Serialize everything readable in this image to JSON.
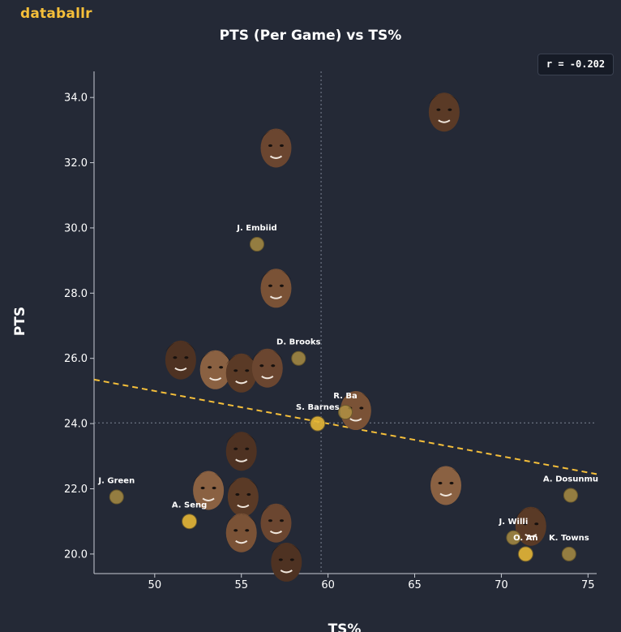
{
  "brand": "databallr",
  "header": {
    "title": "PTS (Per Game) vs TS%"
  },
  "stats_box": {
    "text": "r = -0.202"
  },
  "colors": {
    "background": "#242936",
    "accent": "#f5bf3a",
    "point": "#b99a45",
    "point_highlight": "#e6b636",
    "trend": "#f5bf3a",
    "axis": "#c8ccd4",
    "text": "#ffffff"
  },
  "chart_data": {
    "type": "scatter",
    "title": "PTS (Per Game) vs TS%",
    "xlabel": "TS%",
    "ylabel": "PTS",
    "xlim": [
      46.5,
      75.5
    ],
    "ylim": [
      19.4,
      34.8
    ],
    "x_ticks": [
      50,
      55,
      60,
      65,
      70,
      75
    ],
    "y_ticks": [
      20.0,
      22.0,
      24.0,
      26.0,
      28.0,
      30.0,
      32.0,
      34.0
    ],
    "mean_x": 59.6,
    "mean_y": 24.02,
    "correlation": "r = -0.202",
    "trendline": {
      "x": [
        46.5,
        75.5
      ],
      "y": [
        25.35,
        22.45
      ]
    },
    "grid": false,
    "points": [
      {
        "name": "J. Embiid",
        "x": 55.9,
        "y": 29.5,
        "display": "dot"
      },
      {
        "name": "D. Brooks",
        "x": 58.3,
        "y": 26.0,
        "display": "dot"
      },
      {
        "name": "S. Barnes",
        "x": 59.4,
        "y": 24.0,
        "display": "dot",
        "highlight": true
      },
      {
        "name": "R. Barrett",
        "shown_label": "R. Ba",
        "x": 61.0,
        "y": 24.35,
        "display": "dot"
      },
      {
        "name": "J. Green",
        "x": 47.8,
        "y": 21.75,
        "display": "dot"
      },
      {
        "name": "A. Sengun",
        "shown_label": "A. Seng",
        "x": 52.0,
        "y": 21.0,
        "display": "dot",
        "highlight": true
      },
      {
        "name": "A. Dosunmu",
        "x": 74.0,
        "y": 21.8,
        "display": "dot"
      },
      {
        "name": "J. Williams",
        "shown_label": "J. Willi",
        "x": 70.7,
        "y": 20.5,
        "display": "dot"
      },
      {
        "name": "O. Anunoby",
        "shown_label": "O. An",
        "x": 71.4,
        "y": 20.0,
        "display": "dot",
        "highlight": true
      },
      {
        "name": "K. Towns",
        "shown_label": "K. Towns",
        "x": 73.9,
        "y": 20.0,
        "display": "dot"
      },
      {
        "name": "player-1",
        "x": 66.7,
        "y": 33.6,
        "display": "headshot"
      },
      {
        "name": "player-2",
        "x": 57.0,
        "y": 32.5,
        "display": "headshot"
      },
      {
        "name": "player-3",
        "x": 57.0,
        "y": 28.2,
        "display": "headshot"
      },
      {
        "name": "player-4",
        "x": 51.5,
        "y": 26.0,
        "display": "headshot"
      },
      {
        "name": "player-5",
        "x": 53.5,
        "y": 25.7,
        "display": "headshot"
      },
      {
        "name": "player-6",
        "x": 55.0,
        "y": 25.6,
        "display": "headshot"
      },
      {
        "name": "player-7",
        "x": 56.5,
        "y": 25.75,
        "display": "headshot"
      },
      {
        "name": "player-8",
        "x": 61.6,
        "y": 24.45,
        "display": "headshot"
      },
      {
        "name": "player-9",
        "x": 55.0,
        "y": 23.2,
        "display": "headshot"
      },
      {
        "name": "player-10",
        "x": 53.1,
        "y": 22.0,
        "display": "headshot"
      },
      {
        "name": "player-11",
        "x": 55.1,
        "y": 21.8,
        "display": "headshot"
      },
      {
        "name": "player-12",
        "x": 57.0,
        "y": 21.0,
        "display": "headshot"
      },
      {
        "name": "player-13",
        "x": 55.0,
        "y": 20.7,
        "display": "headshot"
      },
      {
        "name": "player-14",
        "x": 57.6,
        "y": 19.8,
        "display": "headshot"
      },
      {
        "name": "player-15",
        "x": 66.8,
        "y": 22.15,
        "display": "headshot"
      },
      {
        "name": "player-16",
        "x": 71.7,
        "y": 20.9,
        "display": "headshot"
      }
    ]
  }
}
